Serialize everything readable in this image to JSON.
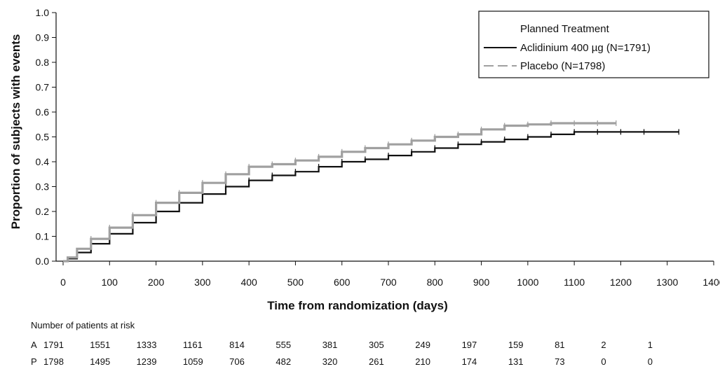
{
  "chart_data": {
    "type": "line",
    "title": "",
    "xlabel": "Time from randomization (days)",
    "ylabel": "Proportion of subjects with events",
    "xlim": [
      0,
      1400
    ],
    "ylim": [
      0,
      1.0
    ],
    "x_ticks": [
      0,
      100,
      200,
      300,
      400,
      500,
      600,
      700,
      800,
      900,
      1000,
      1100,
      1200,
      1300,
      1400
    ],
    "y_ticks": [
      "0.0",
      "0.1",
      "0.2",
      "0.3",
      "0.4",
      "0.5",
      "0.6",
      "0.7",
      "0.8",
      "0.9",
      "1.0"
    ],
    "grid": false,
    "legend": {
      "title": "Planned Treatment",
      "position": "top-right"
    },
    "series": [
      {
        "name": "Aclidinium 400 µg (N=1791)",
        "color": "#111111",
        "dash": "solid",
        "x": [
          0,
          10,
          30,
          60,
          100,
          150,
          200,
          250,
          300,
          350,
          400,
          450,
          500,
          550,
          600,
          650,
          700,
          750,
          800,
          850,
          900,
          950,
          1000,
          1050,
          1100,
          1150,
          1200,
          1250,
          1325
        ],
        "y": [
          0.0,
          0.01,
          0.035,
          0.07,
          0.11,
          0.155,
          0.2,
          0.235,
          0.27,
          0.3,
          0.325,
          0.345,
          0.36,
          0.38,
          0.4,
          0.41,
          0.425,
          0.44,
          0.455,
          0.47,
          0.48,
          0.49,
          0.5,
          0.51,
          0.52,
          0.52,
          0.52,
          0.52,
          0.52
        ]
      },
      {
        "name": "Placebo (N=1798)",
        "color": "#a0a0a0",
        "dash": "dashed",
        "x": [
          0,
          10,
          30,
          60,
          100,
          150,
          200,
          250,
          300,
          350,
          400,
          450,
          500,
          550,
          600,
          650,
          700,
          750,
          800,
          850,
          900,
          950,
          1000,
          1050,
          1100,
          1150,
          1190
        ],
        "y": [
          0.0,
          0.015,
          0.05,
          0.09,
          0.135,
          0.185,
          0.235,
          0.275,
          0.315,
          0.35,
          0.38,
          0.39,
          0.405,
          0.42,
          0.44,
          0.455,
          0.47,
          0.485,
          0.5,
          0.51,
          0.53,
          0.545,
          0.55,
          0.555,
          0.555,
          0.555,
          0.555
        ]
      }
    ],
    "risk_table": {
      "title": "Number of patients at risk",
      "time_points": [
        0,
        100,
        200,
        300,
        400,
        500,
        600,
        700,
        800,
        900,
        1000,
        1100,
        1200,
        1300
      ],
      "rows": [
        {
          "label": "A",
          "values": [
            "1791",
            "1551",
            "1333",
            "1161",
            "814",
            "555",
            "381",
            "305",
            "249",
            "197",
            "159",
            "81",
            "2",
            "1"
          ]
        },
        {
          "label": "P",
          "values": [
            "1798",
            "1495",
            "1239",
            "1059",
            "706",
            "482",
            "320",
            "261",
            "210",
            "174",
            "131",
            "73",
            "0",
            "0"
          ]
        }
      ]
    }
  }
}
